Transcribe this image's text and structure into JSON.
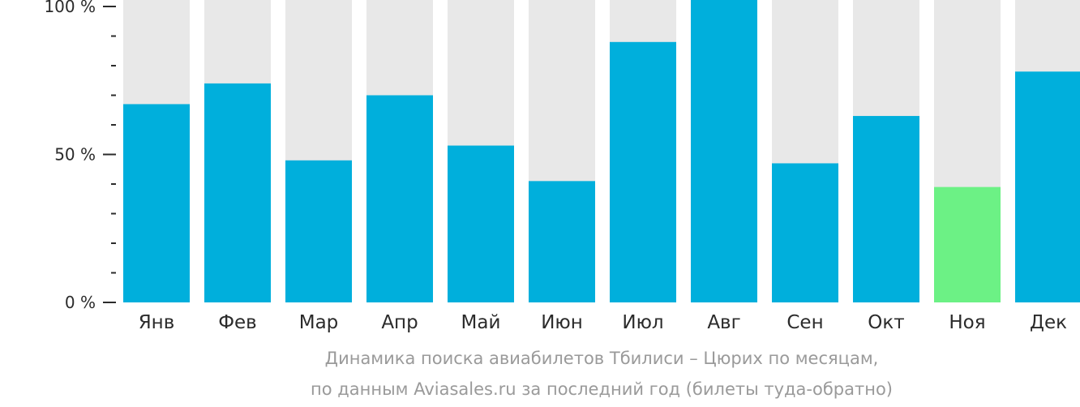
{
  "chart_data": {
    "type": "bar",
    "categories": [
      "Янв",
      "Фев",
      "Мар",
      "Апр",
      "Май",
      "Июн",
      "Июл",
      "Авг",
      "Сен",
      "Окт",
      "Ноя",
      "Дек"
    ],
    "values": [
      67,
      74,
      48,
      70,
      53,
      41,
      88,
      100,
      47,
      63,
      39,
      78
    ],
    "ylim": [
      0,
      100
    ],
    "yticks": [
      "0 %",
      "50 %",
      "100 %"
    ],
    "highlight_index": 10,
    "colors": {
      "bar": "#00afdc",
      "highlight": "#6cf185",
      "track": "#e8e8e8",
      "axis": "#2b2b2b"
    }
  },
  "caption": {
    "line1": "Динамика поиска авиабилетов Тбилиси – Цюрих по месяцам,",
    "line2": "по данным Aviasales.ru за последний год (билеты туда-обратно)"
  }
}
